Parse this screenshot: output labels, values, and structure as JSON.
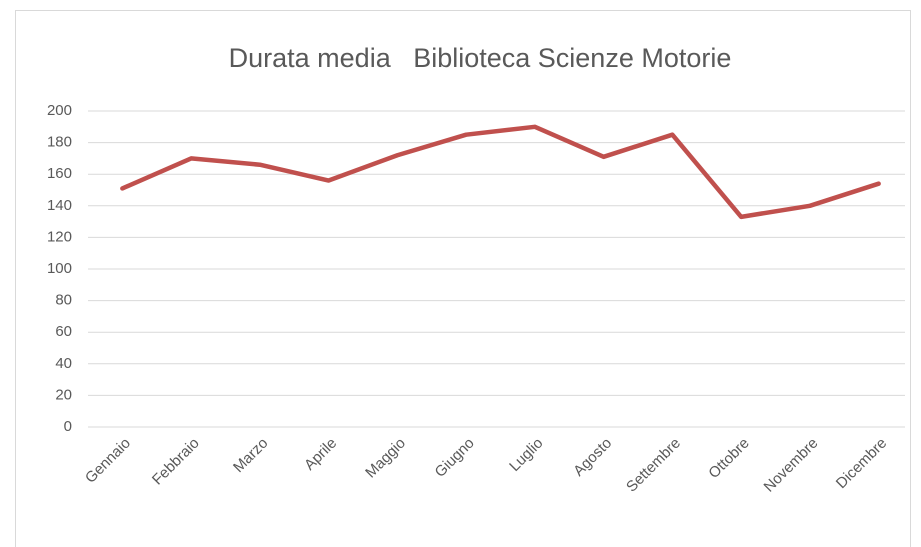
{
  "chart_data": {
    "type": "line",
    "title": "Durata media   Biblioteca Scienze Motorie",
    "categories": [
      "Gennaio",
      "Febbraio",
      "Marzo",
      "Aprile",
      "Maggio",
      "Giugno",
      "Luglio",
      "Agosto",
      "Settembre",
      "Ottobre",
      "Novembre",
      "Dicembre"
    ],
    "series": [
      {
        "name": "Durata media",
        "color": "#c0504d",
        "values": [
          151,
          170,
          166,
          156,
          172,
          185,
          190,
          171,
          185,
          133,
          140,
          154
        ]
      }
    ],
    "ylim": [
      0,
      200
    ],
    "yticks": [
      0,
      20,
      40,
      60,
      80,
      100,
      120,
      140,
      160,
      180,
      200
    ],
    "grid": true
  }
}
